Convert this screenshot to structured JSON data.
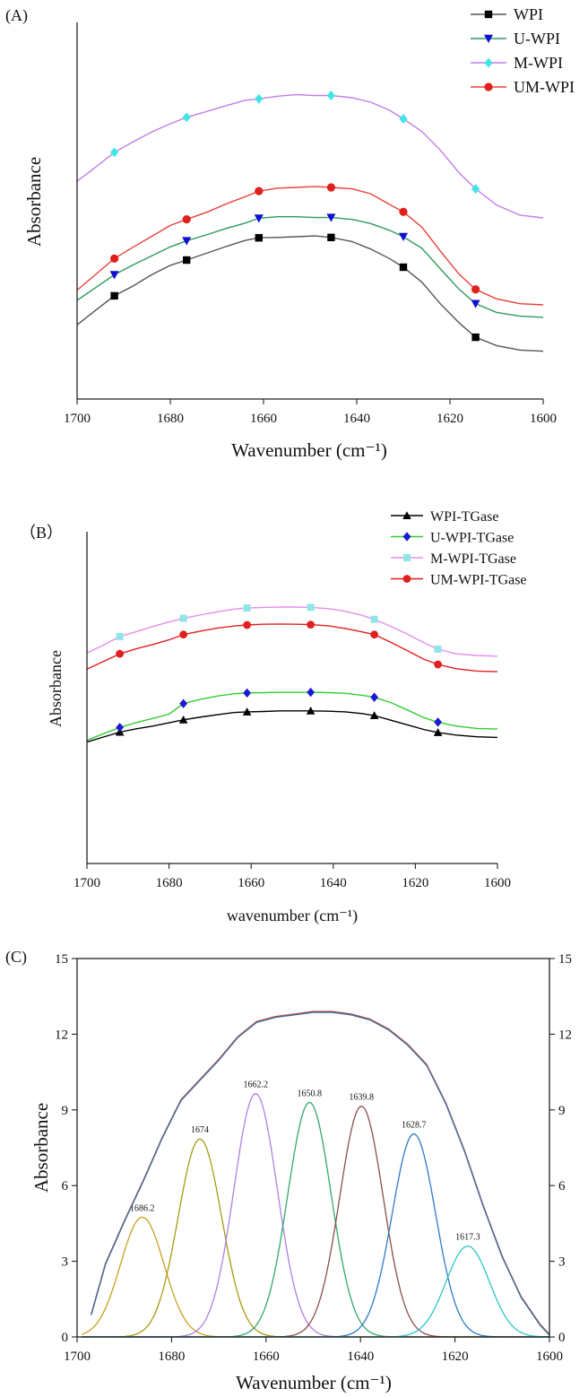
{
  "chart_data": [
    {
      "type": "line",
      "panel": "(A)",
      "xlabel": "Wavenumber (cm⁻¹)",
      "ylabel": "Absorbance",
      "x_ticks": [
        1700,
        1680,
        1660,
        1640,
        1620,
        1600
      ],
      "xlim": [
        1700,
        1600
      ],
      "x_reversed": true,
      "y_ticks_shown": false,
      "ylim": [
        0,
        1
      ],
      "legend_position": "top-right",
      "marker_x": [
        1692,
        1676.5,
        1661,
        1645.5,
        1630,
        1614.5
      ],
      "series": [
        {
          "name": "WPI",
          "color": "#555555",
          "marker": "square",
          "marker_color": "#000000",
          "x": [
            1700,
            1696,
            1692,
            1688,
            1684,
            1680,
            1676.5,
            1672,
            1668,
            1664,
            1661,
            1657,
            1653,
            1649,
            1645.5,
            1641,
            1637,
            1633,
            1630,
            1626,
            1622,
            1618,
            1614.5,
            1610,
            1605,
            1600
          ],
          "y": [
            0.197,
            0.236,
            0.274,
            0.3,
            0.33,
            0.355,
            0.369,
            0.388,
            0.405,
            0.421,
            0.428,
            0.429,
            0.431,
            0.433,
            0.429,
            0.418,
            0.398,
            0.373,
            0.35,
            0.31,
            0.252,
            0.202,
            0.164,
            0.142,
            0.13,
            0.127
          ]
        },
        {
          "name": "U-WPI",
          "color": "#2e9b5f",
          "marker": "triangle-down",
          "marker_color": "#1010d0",
          "x": [
            1700,
            1696,
            1692,
            1688,
            1684,
            1680,
            1676.5,
            1672,
            1668,
            1664,
            1661,
            1657,
            1653,
            1649,
            1645.5,
            1641,
            1637,
            1633,
            1630,
            1626,
            1622,
            1618,
            1614.5,
            1610,
            1605,
            1600
          ],
          "y": [
            0.262,
            0.296,
            0.33,
            0.356,
            0.38,
            0.404,
            0.42,
            0.437,
            0.453,
            0.467,
            0.48,
            0.484,
            0.484,
            0.482,
            0.482,
            0.477,
            0.466,
            0.448,
            0.431,
            0.4,
            0.345,
            0.291,
            0.253,
            0.23,
            0.22,
            0.217
          ]
        },
        {
          "name": "M-WPI",
          "color": "#c07ee8",
          "marker": "diamond",
          "marker_color": "#40e6e6",
          "x": [
            1700,
            1696,
            1692,
            1688,
            1684,
            1680,
            1676.5,
            1672,
            1668,
            1664,
            1661,
            1657,
            1653,
            1649,
            1645.5,
            1641,
            1637,
            1633,
            1630,
            1626,
            1622,
            1618,
            1614.5,
            1610,
            1605,
            1600
          ],
          "y": [
            0.578,
            0.616,
            0.655,
            0.683,
            0.709,
            0.731,
            0.748,
            0.764,
            0.779,
            0.793,
            0.797,
            0.804,
            0.808,
            0.806,
            0.806,
            0.8,
            0.788,
            0.767,
            0.744,
            0.71,
            0.66,
            0.6,
            0.558,
            0.515,
            0.488,
            0.481
          ]
        },
        {
          "name": "UM-WPI",
          "color": "#e8403a",
          "marker": "circle",
          "marker_color": "#e0201a",
          "x": [
            1700,
            1696,
            1692,
            1688,
            1684,
            1680,
            1676.5,
            1672,
            1668,
            1664,
            1661,
            1657,
            1653,
            1649,
            1645.5,
            1641,
            1637,
            1633,
            1630,
            1626,
            1622,
            1618,
            1614.5,
            1610,
            1605,
            1600
          ],
          "y": [
            0.289,
            0.331,
            0.373,
            0.403,
            0.432,
            0.461,
            0.477,
            0.497,
            0.518,
            0.537,
            0.552,
            0.56,
            0.562,
            0.564,
            0.562,
            0.558,
            0.545,
            0.517,
            0.497,
            0.456,
            0.392,
            0.331,
            0.291,
            0.266,
            0.253,
            0.25
          ]
        }
      ]
    },
    {
      "type": "line",
      "panel": "（B）",
      "xlabel": "wavenumber (cm⁻¹)",
      "ylabel": "Absorbance",
      "x_ticks": [
        1700,
        1680,
        1660,
        1640,
        1620,
        1600
      ],
      "xlim": [
        1700,
        1600
      ],
      "x_reversed": true,
      "y_ticks_shown": false,
      "ylim": [
        0,
        1
      ],
      "legend_position": "top-right",
      "marker_x": [
        1692,
        1676.5,
        1661,
        1645.5,
        1630,
        1614.5
      ],
      "series": [
        {
          "name": "WPI-TGase",
          "color": "#000000",
          "marker": "triangle-up",
          "marker_color": "#000000",
          "x": [
            1700,
            1696,
            1692,
            1688,
            1684,
            1680,
            1676.5,
            1672,
            1668,
            1664,
            1661,
            1657,
            1653,
            1649,
            1645.5,
            1641,
            1637,
            1633,
            1630,
            1626,
            1622,
            1618,
            1614.5,
            1610,
            1605,
            1600
          ],
          "y": [
            0.366,
            0.381,
            0.396,
            0.406,
            0.414,
            0.424,
            0.433,
            0.442,
            0.449,
            0.455,
            0.457,
            0.458,
            0.46,
            0.46,
            0.46,
            0.459,
            0.457,
            0.452,
            0.446,
            0.432,
            0.418,
            0.404,
            0.395,
            0.387,
            0.382,
            0.38
          ]
        },
        {
          "name": "U-WPI-TGase",
          "color": "#33cc33",
          "marker": "diamond",
          "marker_color": "#1a1ad0",
          "x": [
            1700,
            1696,
            1692,
            1688,
            1684,
            1680,
            1676.5,
            1672,
            1668,
            1664,
            1661,
            1657,
            1653,
            1649,
            1645.5,
            1641,
            1637,
            1633,
            1630,
            1626,
            1622,
            1618,
            1614.5,
            1610,
            1605,
            1600
          ],
          "y": [
            0.371,
            0.391,
            0.41,
            0.425,
            0.437,
            0.45,
            0.482,
            0.496,
            0.505,
            0.512,
            0.514,
            0.515,
            0.516,
            0.516,
            0.516,
            0.515,
            0.513,
            0.507,
            0.501,
            0.485,
            0.463,
            0.44,
            0.426,
            0.414,
            0.407,
            0.405
          ]
        },
        {
          "name": "M-WPI-TGase",
          "color": "#e58ee8",
          "marker": "square",
          "marker_color": "#8ee6e8",
          "x": [
            1700,
            1696,
            1692,
            1688,
            1684,
            1680,
            1676.5,
            1672,
            1668,
            1664,
            1661,
            1657,
            1653,
            1649,
            1645.5,
            1641,
            1637,
            1633,
            1630,
            1626,
            1622,
            1618,
            1614.5,
            1610,
            1605,
            1600
          ],
          "y": [
            0.634,
            0.658,
            0.684,
            0.699,
            0.714,
            0.728,
            0.739,
            0.75,
            0.759,
            0.767,
            0.77,
            0.772,
            0.773,
            0.773,
            0.772,
            0.768,
            0.76,
            0.748,
            0.736,
            0.715,
            0.692,
            0.666,
            0.646,
            0.632,
            0.627,
            0.625
          ]
        },
        {
          "name": "UM-WPI-TGase",
          "color": "#e02020",
          "marker": "circle",
          "marker_color": "#e02020",
          "x": [
            1700,
            1696,
            1692,
            1688,
            1684,
            1680,
            1676.5,
            1672,
            1668,
            1664,
            1661,
            1657,
            1653,
            1649,
            1645.5,
            1641,
            1637,
            1633,
            1630,
            1626,
            1622,
            1618,
            1614.5,
            1610,
            1605,
            1600
          ],
          "y": [
            0.586,
            0.609,
            0.632,
            0.647,
            0.66,
            0.674,
            0.69,
            0.701,
            0.71,
            0.716,
            0.719,
            0.721,
            0.722,
            0.721,
            0.72,
            0.716,
            0.708,
            0.698,
            0.69,
            0.667,
            0.642,
            0.616,
            0.6,
            0.587,
            0.58,
            0.578
          ]
        }
      ]
    },
    {
      "type": "line",
      "panel": "(C)",
      "xlabel": "Wavenumber (cm⁻¹)",
      "ylabel": "Absorbance",
      "x_ticks": [
        1700,
        1680,
        1660,
        1640,
        1620,
        1600
      ],
      "xlim": [
        1700,
        1600
      ],
      "x_reversed": true,
      "y_ticks": [
        0,
        3,
        6,
        9,
        12,
        15
      ],
      "ylim": [
        0,
        15
      ],
      "right_axis_mirrored": true,
      "envelope": {
        "colors": [
          "#d0402f",
          "#3f6fa0"
        ],
        "x": [
          1697,
          1694,
          1690,
          1686,
          1682,
          1678,
          1674,
          1670,
          1666,
          1662,
          1658,
          1654,
          1650,
          1646,
          1642,
          1638,
          1634,
          1630,
          1626,
          1622,
          1618,
          1614,
          1610,
          1606,
          1602,
          1600
        ],
        "y": [
          0.9,
          2.9,
          4.6,
          6.2,
          7.9,
          9.4,
          10.2,
          11.0,
          11.9,
          12.5,
          12.7,
          12.8,
          12.9,
          12.9,
          12.8,
          12.6,
          12.2,
          11.6,
          10.8,
          9.3,
          7.4,
          5.2,
          3.2,
          1.6,
          0.5,
          0.1
        ]
      },
      "peaks": [
        {
          "label": "1686.2",
          "center": 1686.2,
          "height": 4.75,
          "width": 4.6,
          "color": "#c8a020"
        },
        {
          "label": "1674",
          "center": 1674.0,
          "height": 7.85,
          "width": 4.6,
          "color": "#a89a10"
        },
        {
          "label": "1662.2",
          "center": 1662.2,
          "height": 9.65,
          "width": 4.6,
          "color": "#b27fe0"
        },
        {
          "label": "1650.8",
          "center": 1650.8,
          "height": 9.3,
          "width": 4.6,
          "color": "#33a86a"
        },
        {
          "label": "1639.8",
          "center": 1639.8,
          "height": 9.15,
          "width": 4.6,
          "color": "#8a4d4d"
        },
        {
          "label": "1628.7",
          "center": 1628.7,
          "height": 8.05,
          "width": 4.6,
          "color": "#2e7ac7"
        },
        {
          "label": "1617.3",
          "center": 1617.3,
          "height": 3.6,
          "width": 4.6,
          "color": "#2cc6c6"
        }
      ]
    }
  ]
}
